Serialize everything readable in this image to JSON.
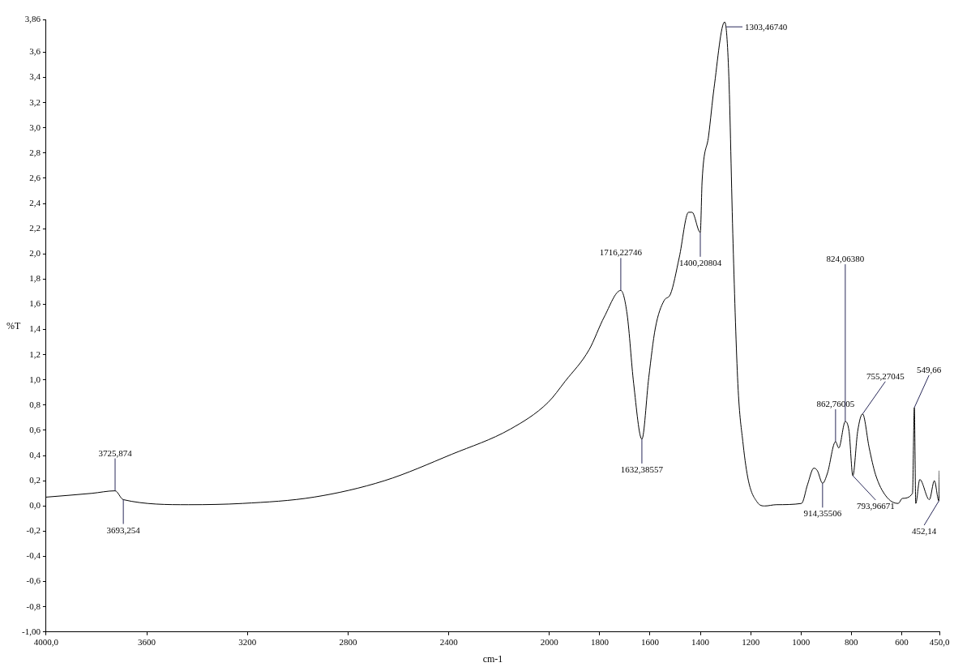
{
  "chart_data": {
    "type": "line",
    "xlabel": "cm-1",
    "ylabel": "%T",
    "xlim": [
      4000,
      450
    ],
    "xticks": [
      {
        "value": 4000,
        "label": "4000,0"
      },
      3600,
      3200,
      2800,
      2400,
      2000,
      1800,
      1600,
      1400,
      1200,
      1000,
      800,
      600,
      {
        "value": 450,
        "label": "450,0"
      }
    ],
    "ylim": [
      -1,
      3.86
    ],
    "yticks": [
      {
        "value": -1,
        "label": "-1,00"
      },
      {
        "value": -0.8,
        "label": "-0,8"
      },
      {
        "value": -0.6,
        "label": "-0,6"
      },
      {
        "value": -0.4,
        "label": "-0,4"
      },
      {
        "value": -0.2,
        "label": "-0,2"
      },
      {
        "value": 0,
        "label": "0,0"
      },
      {
        "value": 0.2,
        "label": "0,2"
      },
      {
        "value": 0.4,
        "label": "0,4"
      },
      {
        "value": 0.6,
        "label": "0,6"
      },
      {
        "value": 0.8,
        "label": "0,8"
      },
      {
        "value": 1,
        "label": "1,0"
      },
      {
        "value": 1.2,
        "label": "1,2"
      },
      {
        "value": 1.4,
        "label": "1,4"
      },
      {
        "value": 1.6,
        "label": "1,6"
      },
      {
        "value": 1.8,
        "label": "1,8"
      },
      {
        "value": 2,
        "label": "2,0"
      },
      {
        "value": 2.2,
        "label": "2,2"
      },
      {
        "value": 2.4,
        "label": "2,4"
      },
      {
        "value": 2.6,
        "label": "2,6"
      },
      {
        "value": 2.8,
        "label": "2,8"
      },
      {
        "value": 3,
        "label": "3,0"
      },
      {
        "value": 3.2,
        "label": "3,2"
      },
      {
        "value": 3.4,
        "label": "3,4"
      },
      {
        "value": 3.6,
        "label": "3,6"
      },
      {
        "value": 3.86,
        "label": "3,86"
      }
    ],
    "series": [
      {
        "color": "#000000",
        "x": [
          4000,
          3819,
          3725.874,
          3693.254,
          3434,
          3219,
          2936,
          2656,
          2388,
          2155,
          2006,
          1937,
          1842,
          1782,
          1716.22746,
          1691,
          1665,
          1632.38557,
          1605,
          1579,
          1544,
          1519,
          1484,
          1447,
          1433,
          1400.20804,
          1393,
          1367,
          1346,
          1303.4674,
          1288,
          1270,
          1251,
          1230,
          1209,
          1174,
          1144,
          1098,
          998,
          974,
          949,
          935,
          914.35506,
          895,
          862.76005,
          850,
          824.0638,
          809,
          793.96671,
          775,
          755.27045,
          729,
          704,
          663,
          614,
          597,
          557,
          549.66,
          544,
          528,
          490,
          470,
          452.14,
          450
        ],
        "values": [
          0.07,
          0.1,
          0.12,
          0.05,
          0.01,
          0.02,
          0.07,
          0.2,
          0.41,
          0.61,
          0.82,
          0.99,
          1.24,
          1.5,
          1.71,
          1.52,
          0.97,
          0.53,
          1.02,
          1.41,
          1.63,
          1.68,
          1.97,
          2.33,
          2.33,
          2.17,
          2.58,
          2.94,
          3.31,
          3.84,
          3.47,
          2.08,
          0.97,
          0.49,
          0.2,
          0.03,
          0.0,
          0.01,
          0.02,
          0.17,
          0.3,
          0.28,
          0.18,
          0.26,
          0.51,
          0.46,
          0.67,
          0.59,
          0.24,
          0.59,
          0.73,
          0.46,
          0.25,
          0.08,
          0.02,
          0.06,
          0.1,
          0.78,
          0.02,
          0.21,
          0.05,
          0.2,
          0.04,
          0.28
        ]
      }
    ],
    "annotations": [
      {
        "text": "3725,874",
        "x": 3725.874,
        "y": 0.12
      },
      {
        "text": "3693,254",
        "x": 3693.254,
        "y": 0.05
      },
      {
        "text": "1716,22746",
        "x": 1716.22746,
        "y": 1.71
      },
      {
        "text": "1632,38557",
        "x": 1632.38557,
        "y": 0.53
      },
      {
        "text": "1400,20804",
        "x": 1400.20804,
        "y": 2.17
      },
      {
        "text": "1303,46740",
        "x": 1303.4674,
        "y": 3.84
      },
      {
        "text": "914,35506",
        "x": 914.35506,
        "y": 0.18
      },
      {
        "text": "862,76005",
        "x": 862.76005,
        "y": 0.51
      },
      {
        "text": "824,06380",
        "x": 824.0638,
        "y": 0.67
      },
      {
        "text": "793,96671",
        "x": 793.96671,
        "y": 0.24
      },
      {
        "text": "755,27045",
        "x": 755.27045,
        "y": 0.73
      },
      {
        "text": "549,66",
        "x": 549.66,
        "y": 0.78
      },
      {
        "text": "452,14",
        "x": 452.14,
        "y": 0.04
      }
    ]
  }
}
